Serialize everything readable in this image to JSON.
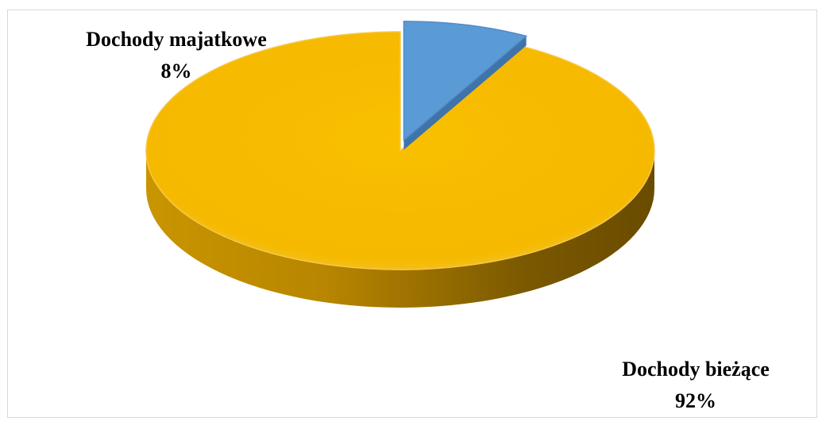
{
  "chart_data": {
    "type": "pie",
    "title": "",
    "slices": [
      {
        "label": "Dochody majątkowe",
        "label_text": "Dochody majatkowe",
        "percent_text": "8%",
        "value": 8,
        "color": "#5b9bd5",
        "exploded": true
      },
      {
        "label": "Dochody bieżące",
        "label_text": "Dochody bieżące",
        "percent_text": "92%",
        "value": 92,
        "color": "#f5b900",
        "exploded": false
      }
    ],
    "style": "3d",
    "legend": "none"
  }
}
